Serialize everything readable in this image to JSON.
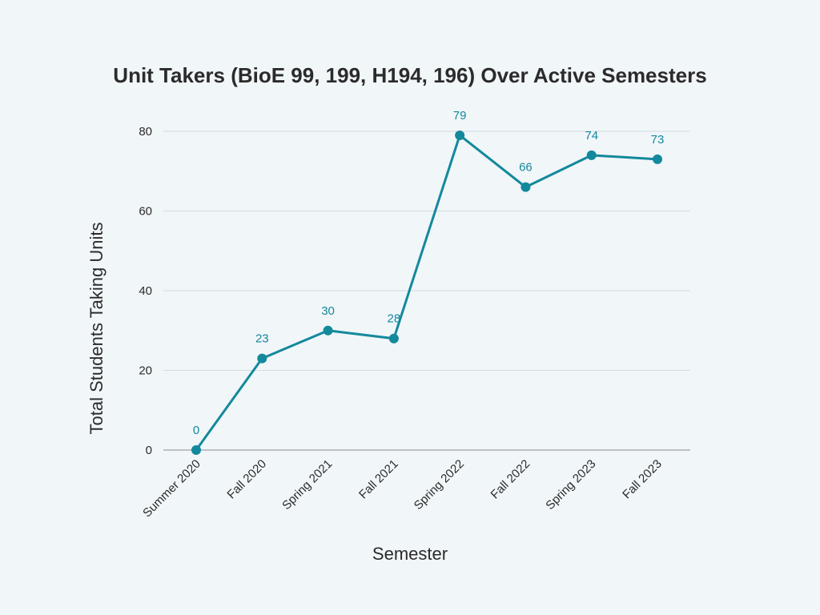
{
  "chart_data": {
    "type": "line",
    "title": "Unit Takers (BioE 99, 199, H194, 196) Over Active Semesters",
    "xlabel": "Semester",
    "ylabel": "Total Students Taking Units",
    "categories": [
      "Summer 2020",
      "Fall 2020",
      "Spring 2021",
      "Fall 2021",
      "Spring 2022",
      "Fall 2022",
      "Spring 2023",
      "Fall 2023"
    ],
    "series": [
      {
        "values": [
          0,
          23,
          30,
          28,
          79,
          66,
          74,
          73
        ],
        "color": "#13899c"
      }
    ],
    "ylim": [
      0,
      80
    ],
    "yticks": [
      0,
      20,
      40,
      60,
      80
    ],
    "grid": true,
    "data_labels": true,
    "colors": {
      "background": "#f1f6f9",
      "line": "#13899c",
      "label": "#13899c"
    }
  }
}
